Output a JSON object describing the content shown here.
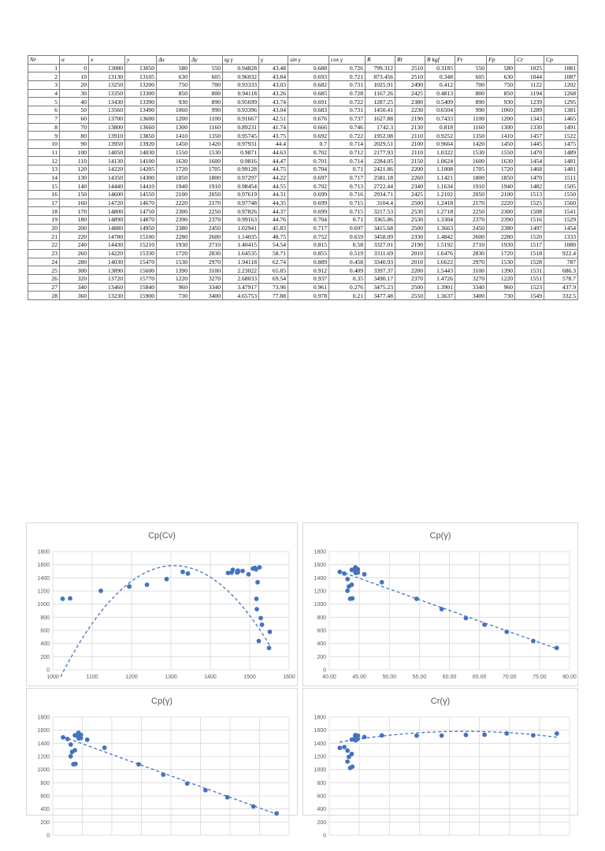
{
  "table": {
    "headers": [
      "Nr",
      "α",
      "x",
      "y",
      "Δx",
      "Δy",
      "tg γ",
      "γ",
      "sin γ",
      "cos γ",
      "R",
      "Rl",
      "R kgf",
      "Fr",
      "Fp",
      "Cr",
      "Cp"
    ],
    "rows": [
      [
        "1",
        "0",
        "13080",
        "13050",
        "580",
        "550",
        "0.94828",
        "43.48",
        "0.688",
        "0.726",
        "799.312",
        "2510",
        "0.3185",
        "550",
        "580",
        "1025",
        "1081"
      ],
      [
        "2",
        "10",
        "13130",
        "13105",
        "630",
        "605",
        "0.96032",
        "43.84",
        "0.693",
        "0.721",
        "873.456",
        "2510",
        "0.348",
        "605",
        "630",
        "1044",
        "1087"
      ],
      [
        "3",
        "20",
        "13250",
        "13200",
        "750",
        "700",
        "0.93333",
        "43.03",
        "0.682",
        "0.731",
        "1025.91",
        "2490",
        "0.412",
        "700",
        "750",
        "1122",
        "1202"
      ],
      [
        "4",
        "30",
        "13350",
        "13300",
        "850",
        "800",
        "0.94118",
        "43.26",
        "0.685",
        "0.728",
        "1167.26",
        "2425",
        "0.4813",
        "800",
        "850",
        "1194",
        "1268"
      ],
      [
        "5",
        "40",
        "13430",
        "13390",
        "930",
        "890",
        "0.95699",
        "43.74",
        "0.691",
        "0.722",
        "1287.25",
        "2380",
        "0.5409",
        "890",
        "930",
        "1239",
        "1295"
      ],
      [
        "6",
        "50",
        "13560",
        "13490",
        "1060",
        "990",
        "0.93396",
        "43.04",
        "0.683",
        "0.731",
        "1450.41",
        "2230",
        "0.6504",
        "990",
        "1060",
        "1289",
        "1381"
      ],
      [
        "7",
        "60",
        "13700",
        "13600",
        "1200",
        "1100",
        "0.91667",
        "42.51",
        "0.676",
        "0.737",
        "1627.88",
        "2190",
        "0.7433",
        "1100",
        "1200",
        "1343",
        "1465"
      ],
      [
        "8",
        "70",
        "13800",
        "13660",
        "1300",
        "1160",
        "0.89231",
        "41.74",
        "0.666",
        "0.746",
        "1742.3",
        "2130",
        "0.818",
        "1160",
        "1300",
        "1330",
        "1491"
      ],
      [
        "9",
        "80",
        "13910",
        "13850",
        "1410",
        "1350",
        "0.95745",
        "43.75",
        "0.692",
        "0.722",
        "1952.08",
        "2110",
        "0.9252",
        "1350",
        "1410",
        "1457",
        "1522"
      ],
      [
        "10",
        "90",
        "13950",
        "13920",
        "1450",
        "1420",
        "0.97931",
        "44.4",
        "0.7",
        "0.714",
        "2029.51",
        "2100",
        "0.9664",
        "1420",
        "1450",
        "1445",
        "1475"
      ],
      [
        "11",
        "100",
        "14050",
        "14030",
        "1550",
        "1530",
        "0.9871",
        "44.63",
        "0.702",
        "0.712",
        "2177.93",
        "2110",
        "1.0322",
        "1530",
        "1550",
        "1470",
        "1489"
      ],
      [
        "12",
        "110",
        "14130",
        "14100",
        "1630",
        "1600",
        "0.9816",
        "44.47",
        "0.701",
        "0.714",
        "2284.05",
        "2150",
        "1.0624",
        "1600",
        "1630",
        "1454",
        "1481"
      ],
      [
        "13",
        "120",
        "14220",
        "14205",
        "1720",
        "1705",
        "0.99128",
        "44.75",
        "0.704",
        "0.71",
        "2421.86",
        "2200",
        "1.1008",
        "1705",
        "1720",
        "1468",
        "1481"
      ],
      [
        "14",
        "130",
        "14350",
        "14300",
        "1850",
        "1800",
        "0.97297",
        "44.22",
        "0.697",
        "0.717",
        "2581.18",
        "2260",
        "1.1421",
        "1800",
        "1850",
        "1470",
        "1511"
      ],
      [
        "15",
        "140",
        "14440",
        "14410",
        "1940",
        "1910",
        "0.98454",
        "44.55",
        "0.702",
        "0.713",
        "2722.44",
        "2340",
        "1.1634",
        "1910",
        "1940",
        "1482",
        "1505"
      ],
      [
        "16",
        "150",
        "14600",
        "14550",
        "2100",
        "2050",
        "0.97619",
        "44.31",
        "0.699",
        "0.716",
        "2934.71",
        "2425",
        "1.2102",
        "2050",
        "2100",
        "1513",
        "1550"
      ],
      [
        "17",
        "160",
        "14720",
        "14670",
        "2220",
        "2170",
        "0.97748",
        "44.35",
        "0.699",
        "0.715",
        "3104.4",
        "2500",
        "1.2418",
        "2170",
        "2220",
        "1525",
        "1560"
      ],
      [
        "18",
        "170",
        "14800",
        "14750",
        "2300",
        "2250",
        "0.97826",
        "44.37",
        "0.699",
        "0.715",
        "3217.53",
        "2530",
        "1.2718",
        "2250",
        "2300",
        "1508",
        "1541"
      ],
      [
        "19",
        "180",
        "14890",
        "14870",
        "2390",
        "2370",
        "0.99163",
        "44.76",
        "0.704",
        "0.71",
        "3365.86",
        "2530",
        "1.3304",
        "2370",
        "2390",
        "1516",
        "1529"
      ],
      [
        "20",
        "200",
        "14880",
        "14950",
        "2380",
        "2450",
        "1.02941",
        "45.83",
        "0.717",
        "0.697",
        "3415.68",
        "2500",
        "1.3663",
        "2450",
        "2380",
        "1497",
        "1454"
      ],
      [
        "21",
        "220",
        "14780",
        "15100",
        "2280",
        "2600",
        "1.14035",
        "48.75",
        "0.752",
        "0.659",
        "3458.09",
        "2330",
        "1.4842",
        "2600",
        "2280",
        "1520",
        "1333"
      ],
      [
        "22",
        "240",
        "14430",
        "15210",
        "1930",
        "2710",
        "1.40415",
        "54.54",
        "0.815",
        "0.58",
        "3327.01",
        "2190",
        "1.5192",
        "2710",
        "1930",
        "1517",
        "1080"
      ],
      [
        "23",
        "260",
        "14220",
        "15330",
        "1720",
        "2830",
        "1.64535",
        "58.71",
        "0.855",
        "0.519",
        "3311.69",
        "2010",
        "1.6476",
        "2830",
        "1720",
        "1518",
        "922.4"
      ],
      [
        "24",
        "280",
        "14030",
        "15470",
        "1530",
        "2970",
        "1.94118",
        "62.74",
        "0.889",
        "0.458",
        "3340.93",
        "2010",
        "1.6622",
        "2970",
        "1530",
        "1528",
        "787"
      ],
      [
        "25",
        "300",
        "13890",
        "15600",
        "1390",
        "3100",
        "2.23022",
        "65.85",
        "0.912",
        "0.409",
        "3397.37",
        "2200",
        "1.5443",
        "3100",
        "1390",
        "1531",
        "686.3"
      ],
      [
        "26",
        "320",
        "13720",
        "15770",
        "1220",
        "3270",
        "2.68033",
        "69.54",
        "0.937",
        "0.35",
        "3490.17",
        "2370",
        "1.4726",
        "3270",
        "1220",
        "1551",
        "578.7"
      ],
      [
        "27",
        "340",
        "13460",
        "15840",
        "960",
        "3340",
        "3.47917",
        "73.96",
        "0.961",
        "0.276",
        "3475.23",
        "2500",
        "1.3901",
        "3340",
        "960",
        "1523",
        "437.9"
      ],
      [
        "28",
        "360",
        "13230",
        "15900",
        "730",
        "3400",
        "4.65753",
        "77.88",
        "0.978",
        "0.21",
        "3477.48",
        "2550",
        "1.3637",
        "3400",
        "730",
        "1549",
        "332.5"
      ]
    ]
  },
  "chart_data": [
    {
      "type": "scatter",
      "title": "Cp(Cv)",
      "xlim": [
        1000,
        1600
      ],
      "ylim": [
        0,
        1800
      ],
      "x_ticks": [
        "1000",
        "1100",
        "1200",
        "1300",
        "1400",
        "1500",
        "1600"
      ],
      "y_ticks": [
        "0",
        "200",
        "400",
        "600",
        "800",
        "1000",
        "1200",
        "1400",
        "1600",
        "1800"
      ],
      "points": [
        [
          1025,
          1081
        ],
        [
          1044,
          1087
        ],
        [
          1122,
          1202
        ],
        [
          1194,
          1268
        ],
        [
          1239,
          1295
        ],
        [
          1289,
          1381
        ],
        [
          1343,
          1465
        ],
        [
          1330,
          1491
        ],
        [
          1457,
          1522
        ],
        [
          1445,
          1475
        ],
        [
          1470,
          1489
        ],
        [
          1454,
          1481
        ],
        [
          1468,
          1481
        ],
        [
          1470,
          1511
        ],
        [
          1482,
          1505
        ],
        [
          1513,
          1550
        ],
        [
          1525,
          1560
        ],
        [
          1508,
          1541
        ],
        [
          1516,
          1529
        ],
        [
          1497,
          1454
        ],
        [
          1520,
          1333
        ],
        [
          1517,
          1080
        ],
        [
          1518,
          922.4
        ],
        [
          1528,
          787
        ],
        [
          1531,
          686.3
        ],
        [
          1551,
          578.7
        ],
        [
          1523,
          437.9
        ],
        [
          1549,
          332.5
        ]
      ],
      "trend": {
        "kind": "poly2",
        "a": -0.0205,
        "b": 53.6,
        "c": -33450
      },
      "trend_x_range": [
        1020,
        1550
      ],
      "grid": true,
      "marker_color": "#4472c4"
    },
    {
      "type": "scatter",
      "title": "Cp(γ)",
      "xlim": [
        40,
        80
      ],
      "ylim": [
        0,
        1800
      ],
      "x_ticks": [
        "40.00",
        "45.00",
        "50.00",
        "55.00",
        "60.00",
        "65.00",
        "70.00",
        "75.00",
        "80.00"
      ],
      "y_ticks": [
        "0",
        "200",
        "400",
        "600",
        "800",
        "1000",
        "1200",
        "1400",
        "1600",
        "1800"
      ],
      "points": [
        [
          43.48,
          1081
        ],
        [
          43.84,
          1087
        ],
        [
          43.03,
          1202
        ],
        [
          43.26,
          1268
        ],
        [
          43.74,
          1295
        ],
        [
          43.04,
          1381
        ],
        [
          42.51,
          1465
        ],
        [
          41.74,
          1491
        ],
        [
          43.75,
          1522
        ],
        [
          44.4,
          1475
        ],
        [
          44.63,
          1489
        ],
        [
          44.47,
          1481
        ],
        [
          44.75,
          1481
        ],
        [
          44.22,
          1511
        ],
        [
          44.55,
          1505
        ],
        [
          44.31,
          1550
        ],
        [
          44.35,
          1560
        ],
        [
          44.37,
          1541
        ],
        [
          44.76,
          1529
        ],
        [
          45.83,
          1454
        ],
        [
          48.75,
          1333
        ],
        [
          54.54,
          1080
        ],
        [
          58.71,
          922.4
        ],
        [
          62.74,
          787
        ],
        [
          65.85,
          686.3
        ],
        [
          69.54,
          578.7
        ],
        [
          73.96,
          437.9
        ],
        [
          77.88,
          332.5
        ]
      ],
      "trend": {
        "kind": "linear",
        "m": -32.6,
        "b": 2860
      },
      "trend_x_range": [
        41.7,
        77.9
      ],
      "grid": true,
      "marker_color": "#4472c4"
    },
    {
      "type": "scatter",
      "title": "Cp(γ)",
      "xlim": [
        40,
        80
      ],
      "ylim": [
        0,
        1800
      ],
      "x_ticks": [],
      "y_ticks": [
        "0",
        "200",
        "400",
        "600",
        "800",
        "1000",
        "1200",
        "1400",
        "1600",
        "1800"
      ],
      "points": [
        [
          43.48,
          1081
        ],
        [
          43.84,
          1087
        ],
        [
          43.03,
          1202
        ],
        [
          43.26,
          1268
        ],
        [
          43.74,
          1295
        ],
        [
          43.04,
          1381
        ],
        [
          42.51,
          1465
        ],
        [
          41.74,
          1491
        ],
        [
          43.75,
          1522
        ],
        [
          44.4,
          1475
        ],
        [
          44.63,
          1489
        ],
        [
          44.47,
          1481
        ],
        [
          44.75,
          1481
        ],
        [
          44.22,
          1511
        ],
        [
          44.55,
          1505
        ],
        [
          44.31,
          1550
        ],
        [
          44.35,
          1560
        ],
        [
          44.37,
          1541
        ],
        [
          44.76,
          1529
        ],
        [
          45.83,
          1454
        ],
        [
          48.75,
          1333
        ],
        [
          54.54,
          1080
        ],
        [
          58.71,
          922.4
        ],
        [
          62.74,
          787
        ],
        [
          65.85,
          686.3
        ],
        [
          69.54,
          578.7
        ],
        [
          73.96,
          437.9
        ],
        [
          77.88,
          332.5
        ]
      ],
      "trend": {
        "kind": "linear",
        "m": -32.6,
        "b": 2860
      },
      "trend_x_range": [
        41.7,
        77.9
      ],
      "grid": true,
      "marker_color": "#4472c4"
    },
    {
      "type": "scatter",
      "title": "Cr(γ)",
      "xlim": [
        40,
        80
      ],
      "ylim": [
        0,
        1800
      ],
      "x_ticks": [],
      "y_ticks": [
        "0",
        "200",
        "400",
        "600",
        "800",
        "1000",
        "1200",
        "1400",
        "1600",
        "1800"
      ],
      "points": [
        [
          43.48,
          1025
        ],
        [
          43.84,
          1044
        ],
        [
          43.03,
          1122
        ],
        [
          43.26,
          1194
        ],
        [
          43.74,
          1239
        ],
        [
          43.04,
          1289
        ],
        [
          42.51,
          1343
        ],
        [
          41.74,
          1330
        ],
        [
          43.75,
          1457
        ],
        [
          44.4,
          1445
        ],
        [
          44.63,
          1470
        ],
        [
          44.47,
          1454
        ],
        [
          44.75,
          1468
        ],
        [
          44.22,
          1470
        ],
        [
          44.55,
          1482
        ],
        [
          44.31,
          1513
        ],
        [
          44.35,
          1525
        ],
        [
          44.37,
          1508
        ],
        [
          44.76,
          1516
        ],
        [
          45.83,
          1497
        ],
        [
          48.75,
          1520
        ],
        [
          54.54,
          1517
        ],
        [
          58.71,
          1518
        ],
        [
          62.74,
          1528
        ],
        [
          65.85,
          1531
        ],
        [
          69.54,
          1551
        ],
        [
          73.96,
          1523
        ],
        [
          77.88,
          1549
        ]
      ],
      "trend": {
        "kind": "poly2",
        "a": -0.38,
        "b": 47.5,
        "c": 98
      },
      "trend_x_range": [
        41.7,
        77.9
      ],
      "grid": true,
      "marker_color": "#4472c4"
    }
  ]
}
